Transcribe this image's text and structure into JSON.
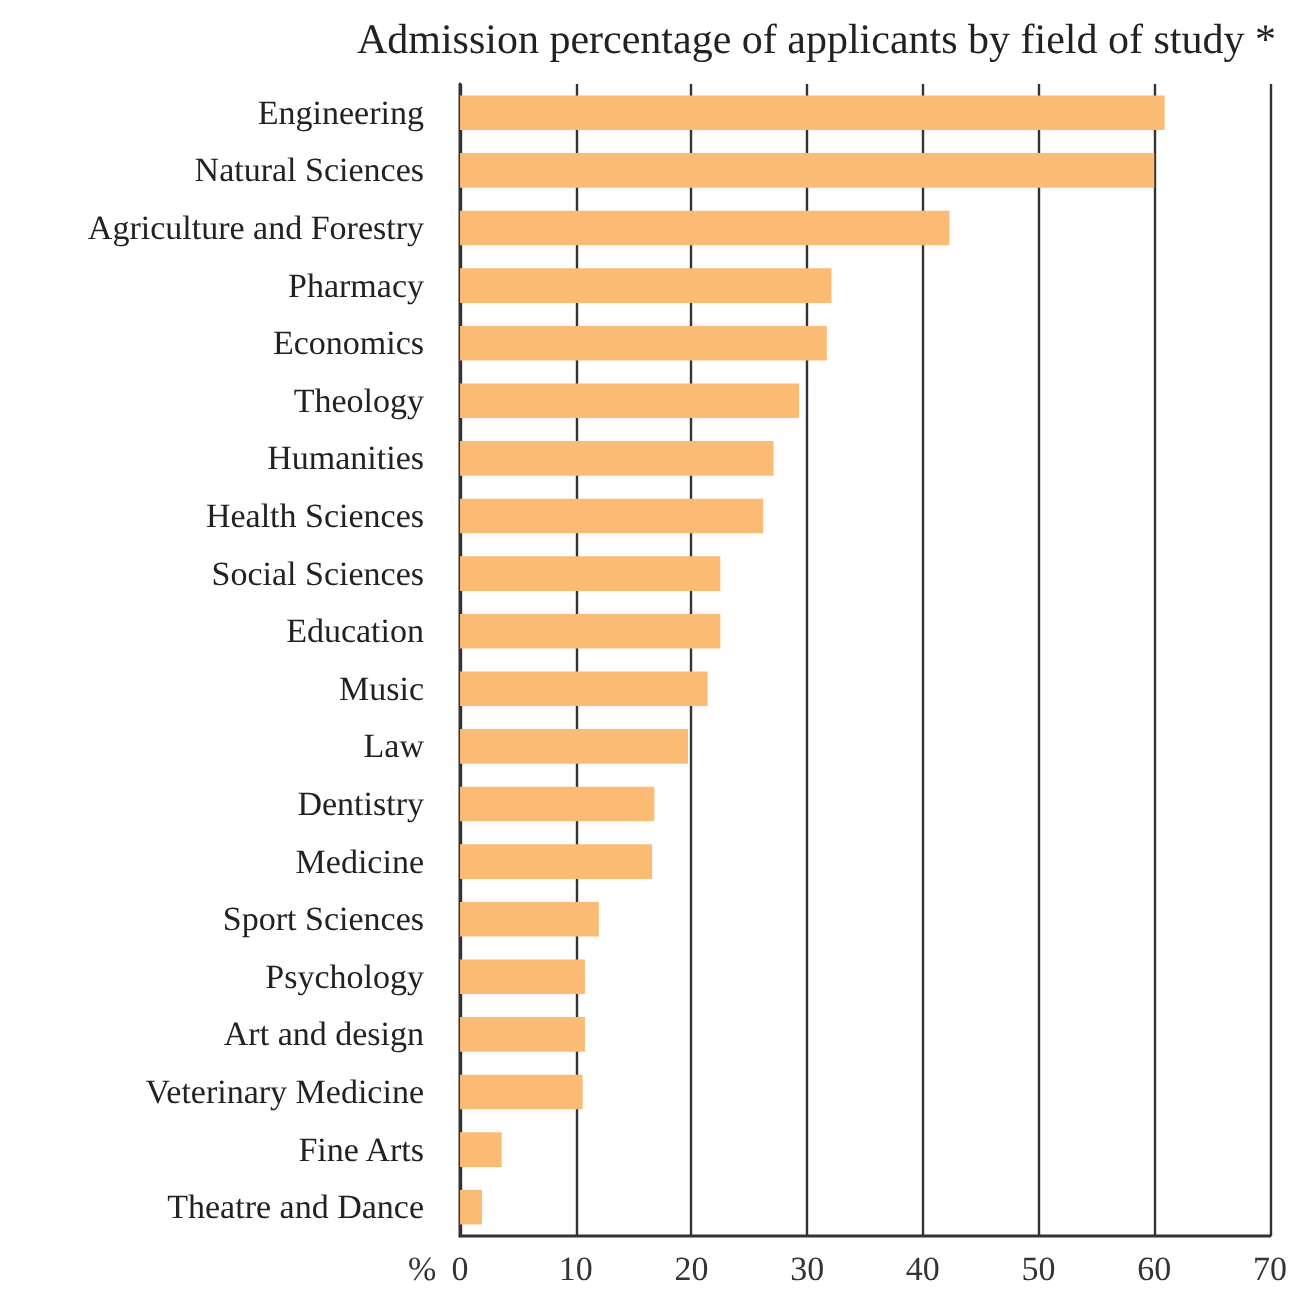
{
  "chart_data": {
    "type": "bar",
    "orientation": "horizontal",
    "title": "Admission percentage of applicants by field of study *",
    "xlabel": "%",
    "categories": [
      "Engineering",
      "Natural Sciences",
      "Agriculture and Forestry",
      "Pharmacy",
      "Economics",
      "Theology",
      "Humanities",
      "Health Sciences",
      "Social Sciences",
      "Education",
      "Music",
      "Law",
      "Dentistry",
      "Medicine",
      "Sport Sciences",
      "Psychology",
      "Art and design",
      "Veterinary Medicine",
      "Fine Arts",
      "Theatre and Dance"
    ],
    "values": [
      60.9,
      60.0,
      42.3,
      32.1,
      31.7,
      29.3,
      27.1,
      26.2,
      22.5,
      22.5,
      21.4,
      19.7,
      16.8,
      16.6,
      12.0,
      10.8,
      10.8,
      10.6,
      3.6,
      1.9
    ],
    "color": "#fbbb75",
    "xlim": [
      0,
      70
    ],
    "xticks": [
      0,
      10,
      20,
      30,
      40,
      50,
      60,
      70
    ],
    "grid": "x"
  }
}
